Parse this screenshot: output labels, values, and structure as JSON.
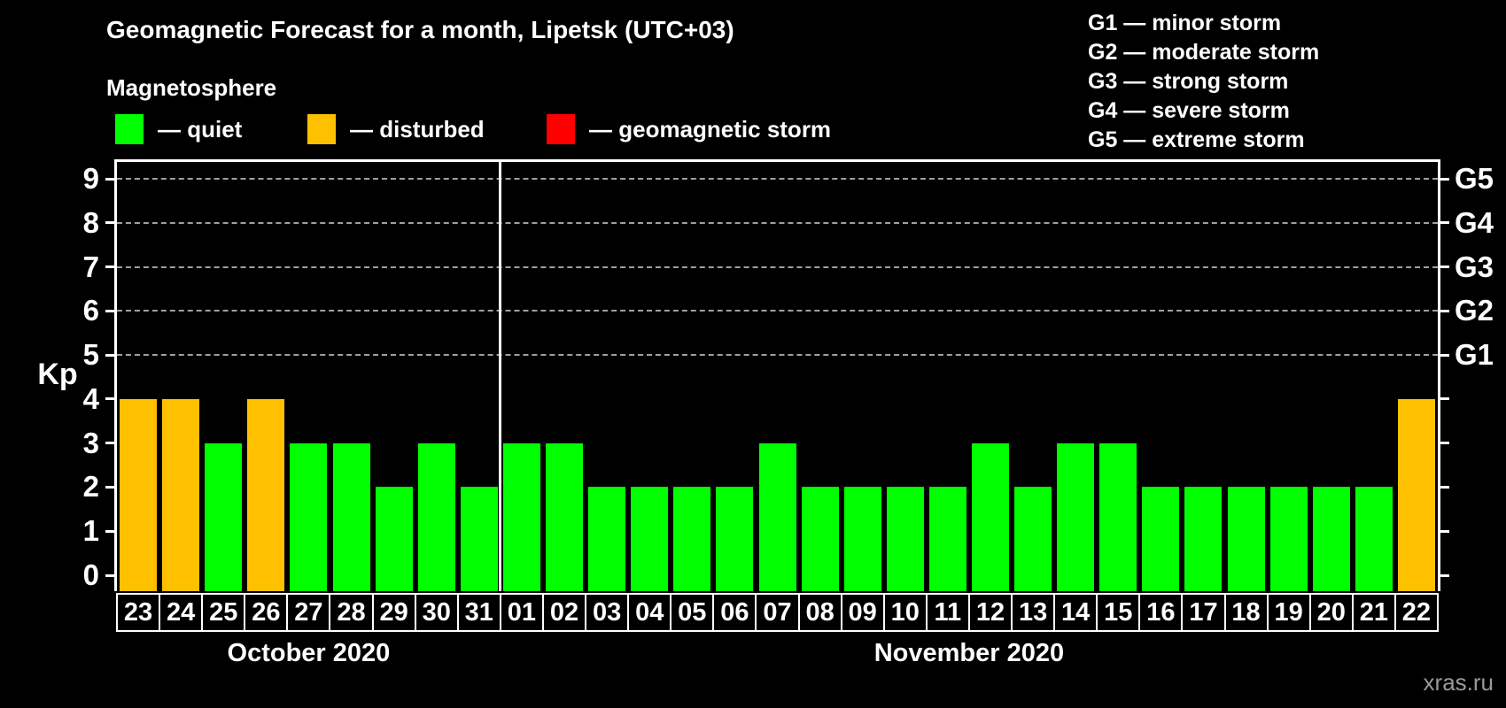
{
  "title": "Geomagnetic Forecast for a month, Lipetsk (UTC+03)",
  "subtitle": "Magnetosphere",
  "legend": {
    "items": [
      {
        "status": "quiet",
        "label": "— quiet",
        "color": "#00ff00"
      },
      {
        "status": "disturbed",
        "label": "— disturbed",
        "color": "#ffc000"
      },
      {
        "status": "storm",
        "label": "— geomagnetic storm",
        "color": "#ff0000"
      }
    ]
  },
  "g_scale_legend": [
    "G1 — minor storm",
    "G2 — moderate storm",
    "G3 — strong storm",
    "G4 — severe storm",
    "G5 — extreme storm"
  ],
  "watermark": "xras.ru",
  "chart_data": {
    "type": "bar",
    "title": "Geomagnetic Forecast for a month, Lipetsk (UTC+03)",
    "ylabel": "Kp",
    "ylim": [
      0,
      9
    ],
    "yticks": [
      0,
      1,
      2,
      3,
      4,
      5,
      6,
      7,
      8,
      9
    ],
    "right_axis_labels": [
      {
        "kp": 5,
        "label": "G1"
      },
      {
        "kp": 6,
        "label": "G2"
      },
      {
        "kp": 7,
        "label": "G3"
      },
      {
        "kp": 8,
        "label": "G4"
      },
      {
        "kp": 9,
        "label": "G5"
      }
    ],
    "gridlines_at": [
      5,
      6,
      7,
      8,
      9
    ],
    "grid_style": "dashed",
    "legend_position": "top-left",
    "months": [
      {
        "label": "October 2020",
        "days": 9
      },
      {
        "label": "November 2020",
        "days": 22
      }
    ],
    "categories": [
      "23",
      "24",
      "25",
      "26",
      "27",
      "28",
      "29",
      "30",
      "31",
      "01",
      "02",
      "03",
      "04",
      "05",
      "06",
      "07",
      "08",
      "09",
      "10",
      "11",
      "12",
      "13",
      "14",
      "15",
      "16",
      "17",
      "18",
      "19",
      "20",
      "21",
      "22"
    ],
    "series": [
      {
        "name": "Kp forecast",
        "values": [
          4,
          4,
          3,
          4,
          3,
          3,
          2,
          3,
          2,
          3,
          3,
          2,
          2,
          2,
          2,
          3,
          2,
          2,
          2,
          2,
          3,
          2,
          3,
          3,
          2,
          2,
          2,
          2,
          2,
          2,
          4
        ]
      }
    ],
    "statuses": [
      "disturbed",
      "disturbed",
      "quiet",
      "disturbed",
      "quiet",
      "quiet",
      "quiet",
      "quiet",
      "quiet",
      "quiet",
      "quiet",
      "quiet",
      "quiet",
      "quiet",
      "quiet",
      "quiet",
      "quiet",
      "quiet",
      "quiet",
      "quiet",
      "quiet",
      "quiet",
      "quiet",
      "quiet",
      "quiet",
      "quiet",
      "quiet",
      "quiet",
      "quiet",
      "quiet",
      "disturbed"
    ],
    "status_colors": {
      "quiet": "#00ff00",
      "disturbed": "#ffc000",
      "storm": "#ff0000"
    }
  }
}
